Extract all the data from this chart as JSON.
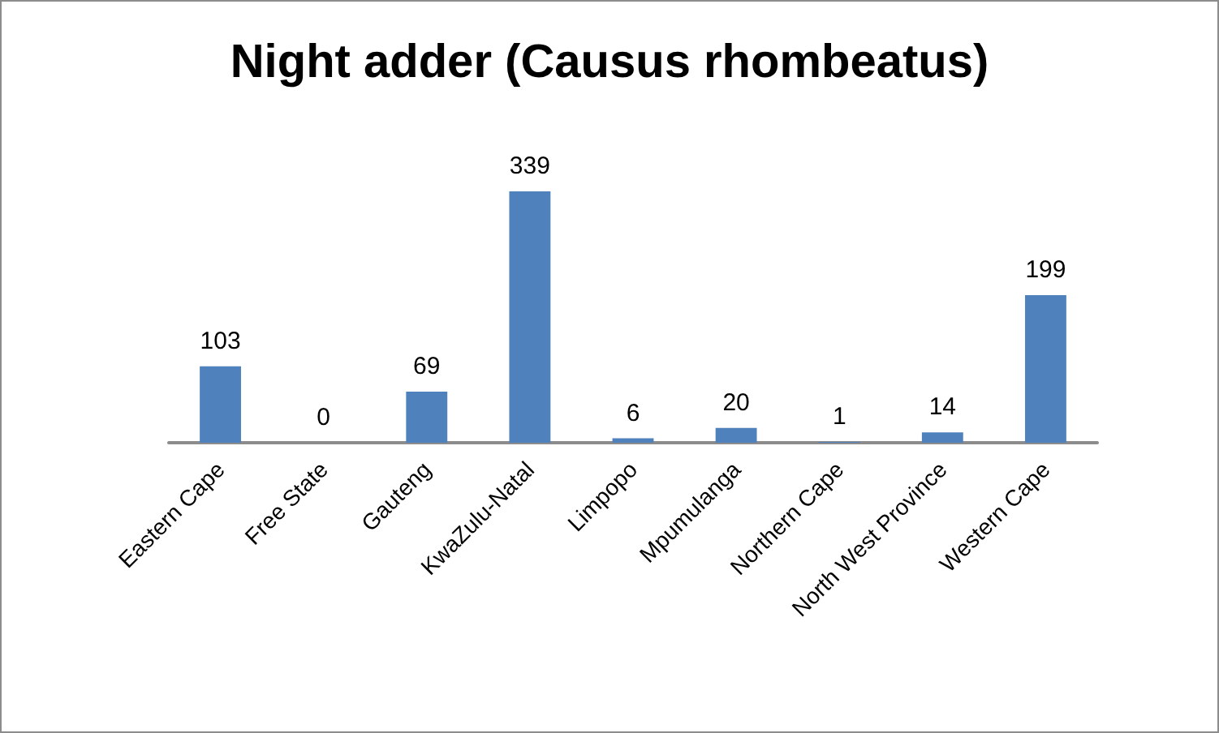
{
  "chart_data": {
    "type": "bar",
    "title": "Night adder (Causus rhombeatus)",
    "categories": [
      "Eastern Cape",
      "Free State",
      "Gauteng",
      "KwaZulu-Natal",
      "Limpopo",
      "Mpumulanga",
      "Northern Cape",
      "North West Province",
      "Western Cape"
    ],
    "values": [
      103,
      0,
      69,
      339,
      6,
      20,
      1,
      14,
      199
    ],
    "color": "#4f81bd",
    "data_labels": true,
    "grid": false
  }
}
